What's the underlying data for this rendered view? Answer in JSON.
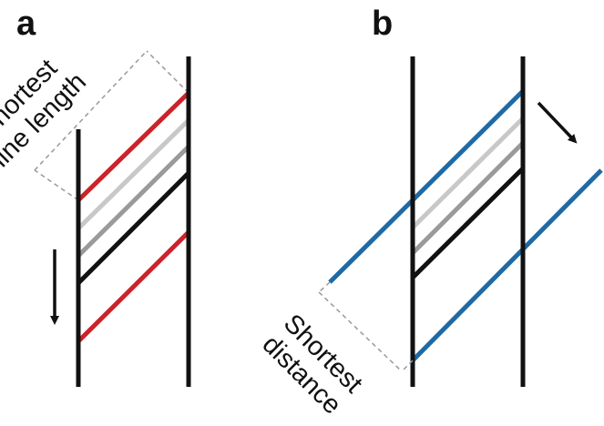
{
  "panels": {
    "a": {
      "label": "a",
      "annotation_line1": "Shortest",
      "annotation_line2": "line length"
    },
    "b": {
      "label": "b",
      "annotation_line1": "Shortest",
      "annotation_line2": "distance"
    }
  },
  "colors": {
    "ink": "#111111",
    "red": "#cc2229",
    "light_gray": "#c8c8c8",
    "mid_gray": "#9a9a9a",
    "blue": "#1f6aa5",
    "dashed": "#999999"
  },
  "icons": [
    "arrow-down-icon",
    "arrow-down-right-icon"
  ]
}
